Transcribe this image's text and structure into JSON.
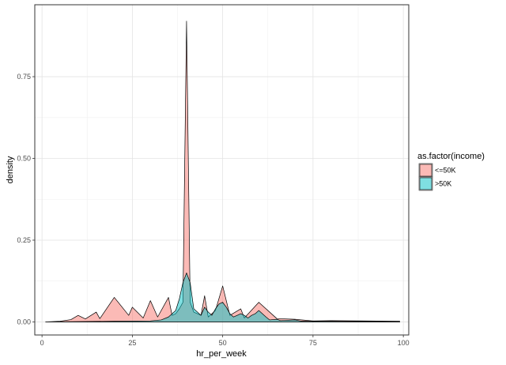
{
  "chart_data": {
    "type": "area",
    "xlabel": "hr_per_week",
    "ylabel": "density",
    "xlim": [
      -2,
      101.5
    ],
    "ylim": [
      -0.04,
      0.97
    ],
    "x_ticks": [
      0,
      25,
      50,
      75,
      100
    ],
    "x_tick_labels": [
      "0",
      "25",
      "50",
      "75",
      "100"
    ],
    "y_ticks": [
      0,
      0.25,
      0.5,
      0.75
    ],
    "y_tick_labels": [
      "0.00",
      "0.25",
      "0.50",
      "0.75"
    ],
    "grid": true,
    "legend": {
      "title": "as.factor(income)",
      "position": "right"
    },
    "series": [
      {
        "name": "<=50K",
        "color": "#F8766D",
        "fill_opacity": 0.5,
        "points": [
          [
            1,
            0
          ],
          [
            5,
            0.002
          ],
          [
            8,
            0.007
          ],
          [
            10,
            0.02
          ],
          [
            12,
            0.009
          ],
          [
            15,
            0.03
          ],
          [
            16,
            0.01
          ],
          [
            20,
            0.075
          ],
          [
            24,
            0.02
          ],
          [
            25,
            0.045
          ],
          [
            28,
            0.012
          ],
          [
            30,
            0.065
          ],
          [
            32,
            0.015
          ],
          [
            35,
            0.075
          ],
          [
            36,
            0.02
          ],
          [
            37,
            0.025
          ],
          [
            38,
            0.04
          ],
          [
            39,
            0.06
          ],
          [
            40,
            0.92
          ],
          [
            41,
            0.06
          ],
          [
            42,
            0.03
          ],
          [
            43,
            0.025
          ],
          [
            44,
            0.02
          ],
          [
            45,
            0.08
          ],
          [
            46,
            0.015
          ],
          [
            48,
            0.035
          ],
          [
            50,
            0.11
          ],
          [
            52,
            0.02
          ],
          [
            55,
            0.04
          ],
          [
            56,
            0.012
          ],
          [
            60,
            0.06
          ],
          [
            65,
            0.01
          ],
          [
            70,
            0.008
          ],
          [
            75,
            0.003
          ],
          [
            80,
            0.004
          ],
          [
            99,
            0.002
          ]
        ]
      },
      {
        "name": ">50K",
        "color": "#00BFC4",
        "fill_opacity": 0.5,
        "points": [
          [
            1,
            0
          ],
          [
            20,
            0.002
          ],
          [
            30,
            0.003
          ],
          [
            33,
            0.006
          ],
          [
            35,
            0.015
          ],
          [
            37,
            0.035
          ],
          [
            38,
            0.07
          ],
          [
            39,
            0.12
          ],
          [
            40,
            0.15
          ],
          [
            41,
            0.12
          ],
          [
            42,
            0.04
          ],
          [
            43,
            0.03
          ],
          [
            44,
            0.02
          ],
          [
            45,
            0.045
          ],
          [
            46,
            0.03
          ],
          [
            47,
            0.02
          ],
          [
            48,
            0.04
          ],
          [
            49,
            0.055
          ],
          [
            50,
            0.06
          ],
          [
            51,
            0.045
          ],
          [
            52,
            0.025
          ],
          [
            53,
            0.015
          ],
          [
            54,
            0.02
          ],
          [
            55,
            0.025
          ],
          [
            56,
            0.02
          ],
          [
            57,
            0.012
          ],
          [
            58,
            0.02
          ],
          [
            59,
            0.025
          ],
          [
            60,
            0.035
          ],
          [
            61,
            0.025
          ],
          [
            62,
            0.015
          ],
          [
            63,
            0.006
          ],
          [
            65,
            0.008
          ],
          [
            66,
            0.004
          ],
          [
            70,
            0.006
          ],
          [
            72,
            0.002
          ],
          [
            75,
            0.002
          ],
          [
            80,
            0.002
          ],
          [
            99,
            0.001
          ]
        ]
      }
    ]
  }
}
